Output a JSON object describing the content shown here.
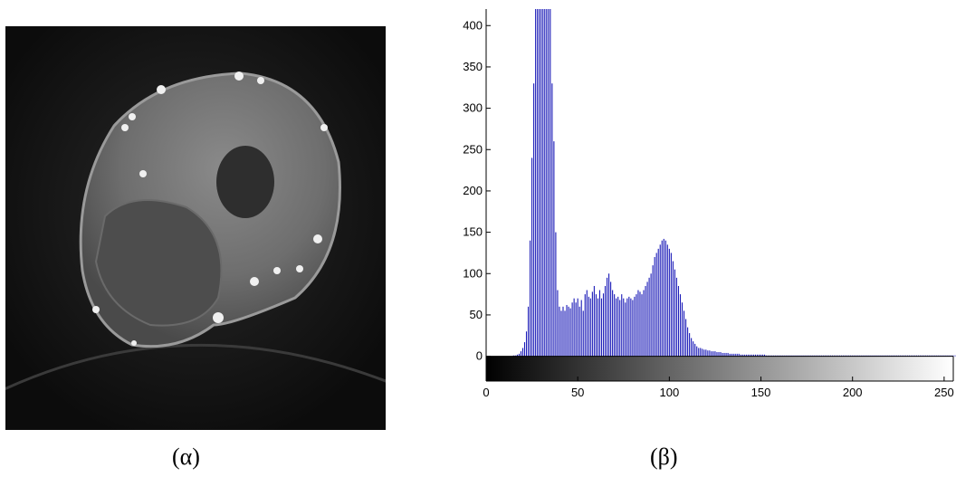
{
  "captions": {
    "left": "(α)",
    "right": "(β)"
  },
  "colors": {
    "bars": "#1c1cb8",
    "image_background": "#111111"
  },
  "chart_data": {
    "type": "bar",
    "title": "",
    "xlabel": "",
    "ylabel": "",
    "xlim": [
      0,
      255
    ],
    "ylim": [
      -30,
      420
    ],
    "x_ticks": [
      0,
      50,
      100,
      150,
      200,
      250
    ],
    "y_ticks": [
      0,
      50,
      100,
      150,
      200,
      250,
      300,
      350,
      400
    ],
    "grid": false,
    "colorbar": "grayscale 0-255 below axis",
    "series": [
      {
        "values": [
          0,
          0,
          0,
          0,
          0,
          0,
          0,
          0,
          0,
          0,
          0,
          0,
          0,
          0,
          0,
          1,
          1,
          2,
          3,
          6,
          10,
          17,
          30,
          60,
          140,
          240,
          330,
          420,
          420,
          420,
          420,
          420,
          420,
          420,
          420,
          420,
          330,
          260,
          150,
          80,
          60,
          55,
          60,
          55,
          62,
          60,
          58,
          65,
          70,
          65,
          70,
          60,
          68,
          55,
          75,
          80,
          72,
          70,
          78,
          85,
          75,
          70,
          80,
          70,
          76,
          85,
          95,
          100,
          90,
          80,
          75,
          70,
          72,
          68,
          75,
          70,
          65,
          70,
          72,
          70,
          68,
          72,
          75,
          80,
          78,
          75,
          80,
          85,
          90,
          95,
          100,
          110,
          120,
          125,
          130,
          135,
          140,
          142,
          140,
          135,
          130,
          125,
          115,
          105,
          95,
          85,
          75,
          65,
          55,
          45,
          35,
          28,
          22,
          18,
          15,
          12,
          10,
          10,
          9,
          8,
          8,
          7,
          7,
          6,
          6,
          6,
          5,
          5,
          5,
          4,
          4,
          4,
          4,
          3,
          3,
          3,
          3,
          3,
          3,
          2,
          2,
          2,
          2,
          2,
          2,
          2,
          2,
          2,
          2,
          2,
          2,
          2,
          2,
          1,
          1,
          1,
          1,
          1,
          1,
          1,
          1,
          1,
          1,
          1,
          1,
          1,
          1,
          1,
          1,
          1,
          1,
          1,
          1,
          1,
          1,
          1,
          1,
          1,
          1,
          1,
          1,
          1,
          1,
          1,
          1,
          1,
          1,
          1,
          1,
          1,
          1,
          1,
          1,
          1,
          1,
          1,
          1,
          1,
          1,
          1,
          1,
          1,
          1,
          1,
          1,
          1,
          1,
          1,
          1,
          1,
          1,
          1,
          1,
          1,
          1,
          1,
          1,
          1,
          1,
          1,
          1,
          1,
          1,
          1,
          1,
          1,
          1,
          1,
          1,
          1,
          1,
          1,
          1,
          1,
          1,
          1,
          1,
          1,
          1,
          1,
          1,
          1,
          1,
          1,
          1,
          1,
          1,
          1,
          1,
          1,
          1,
          1,
          1,
          1,
          1,
          1,
          1,
          1,
          1,
          1,
          1,
          1
        ]
      }
    ]
  }
}
